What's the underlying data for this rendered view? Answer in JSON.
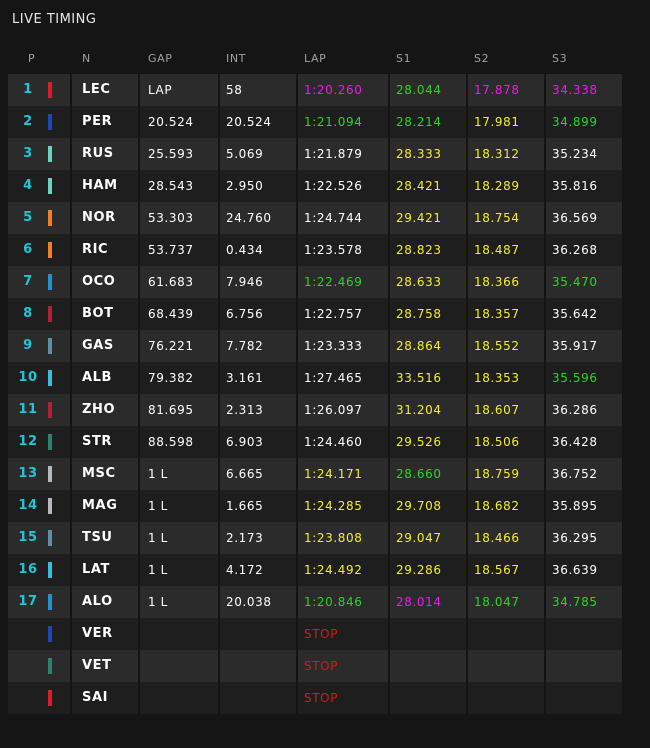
{
  "title": "LIVE TIMING",
  "headers": [
    "P",
    "N",
    "GAP",
    "INT",
    "LAP",
    "S1",
    "S2",
    "S3"
  ],
  "colors": {
    "white": "#ffffff",
    "yellow": "#f2ee33",
    "green": "#2fd12f",
    "purple": "#e81de3",
    "red": "#e01818",
    "position": "#1fc6d8"
  },
  "rows": [
    {
      "p": "1",
      "n": "LEC",
      "team": "#dc1f26",
      "gap": "LAP",
      "int": "58",
      "lap": "1:20.260",
      "lap_c": "purple",
      "s1": "28.044",
      "s1_c": "green",
      "s2": "17.878",
      "s2_c": "purple",
      "s3": "34.338",
      "s3_c": "purple"
    },
    {
      "p": "2",
      "n": "PER",
      "team": "#1c48b8",
      "gap": "20.524",
      "int": "20.524",
      "lap": "1:21.094",
      "lap_c": "green",
      "s1": "28.214",
      "s1_c": "green",
      "s2": "17.981",
      "s2_c": "yellow",
      "s3": "34.899",
      "s3_c": "green"
    },
    {
      "p": "3",
      "n": "RUS",
      "team": "#6cd3bf",
      "gap": "25.593",
      "int": "5.069",
      "lap": "1:21.879",
      "lap_c": "white",
      "s1": "28.333",
      "s1_c": "yellow",
      "s2": "18.312",
      "s2_c": "yellow",
      "s3": "35.234",
      "s3_c": "white"
    },
    {
      "p": "4",
      "n": "HAM",
      "team": "#6cd3bf",
      "gap": "28.543",
      "int": "2.950",
      "lap": "1:22.526",
      "lap_c": "white",
      "s1": "28.421",
      "s1_c": "yellow",
      "s2": "18.289",
      "s2_c": "yellow",
      "s3": "35.816",
      "s3_c": "white"
    },
    {
      "p": "5",
      "n": "NOR",
      "team": "#f58020",
      "gap": "53.303",
      "int": "24.760",
      "lap": "1:24.744",
      "lap_c": "white",
      "s1": "29.421",
      "s1_c": "yellow",
      "s2": "18.754",
      "s2_c": "yellow",
      "s3": "36.569",
      "s3_c": "white"
    },
    {
      "p": "6",
      "n": "RIC",
      "team": "#f58020",
      "gap": "53.737",
      "int": "0.434",
      "lap": "1:23.578",
      "lap_c": "white",
      "s1": "28.823",
      "s1_c": "yellow",
      "s2": "18.487",
      "s2_c": "yellow",
      "s3": "36.268",
      "s3_c": "white"
    },
    {
      "p": "7",
      "n": "OCO",
      "team": "#2293d1",
      "gap": "61.683",
      "int": "7.946",
      "lap": "1:22.469",
      "lap_c": "green",
      "s1": "28.633",
      "s1_c": "yellow",
      "s2": "18.366",
      "s2_c": "yellow",
      "s3": "35.470",
      "s3_c": "green"
    },
    {
      "p": "8",
      "n": "BOT",
      "team": "#b12039",
      "gap": "68.439",
      "int": "6.756",
      "lap": "1:22.757",
      "lap_c": "white",
      "s1": "28.758",
      "s1_c": "yellow",
      "s2": "18.357",
      "s2_c": "yellow",
      "s3": "35.642",
      "s3_c": "white"
    },
    {
      "p": "9",
      "n": "GAS",
      "team": "#5e8faa",
      "gap": "76.221",
      "int": "7.782",
      "lap": "1:23.333",
      "lap_c": "white",
      "s1": "28.864",
      "s1_c": "yellow",
      "s2": "18.552",
      "s2_c": "yellow",
      "s3": "35.917",
      "s3_c": "white"
    },
    {
      "p": "10",
      "n": "ALB",
      "team": "#37bedd",
      "gap": "79.382",
      "int": "3.161",
      "lap": "1:27.465",
      "lap_c": "white",
      "s1": "33.516",
      "s1_c": "yellow",
      "s2": "18.353",
      "s2_c": "yellow",
      "s3": "35.596",
      "s3_c": "green"
    },
    {
      "p": "11",
      "n": "ZHO",
      "team": "#b12039",
      "gap": "81.695",
      "int": "2.313",
      "lap": "1:26.097",
      "lap_c": "white",
      "s1": "31.204",
      "s1_c": "yellow",
      "s2": "18.607",
      "s2_c": "yellow",
      "s3": "36.286",
      "s3_c": "white"
    },
    {
      "p": "12",
      "n": "STR",
      "team": "#2d826d",
      "gap": "88.598",
      "int": "6.903",
      "lap": "1:24.460",
      "lap_c": "white",
      "s1": "29.526",
      "s1_c": "yellow",
      "s2": "18.506",
      "s2_c": "yellow",
      "s3": "36.428",
      "s3_c": "white"
    },
    {
      "p": "13",
      "n": "MSC",
      "team": "#b6babd",
      "gap": "1 L",
      "int": "6.665",
      "lap": "1:24.171",
      "lap_c": "yellow",
      "s1": "28.660",
      "s1_c": "green",
      "s2": "18.759",
      "s2_c": "yellow",
      "s3": "36.752",
      "s3_c": "white"
    },
    {
      "p": "14",
      "n": "MAG",
      "team": "#b6babd",
      "gap": "1 L",
      "int": "1.665",
      "lap": "1:24.285",
      "lap_c": "yellow",
      "s1": "29.708",
      "s1_c": "yellow",
      "s2": "18.682",
      "s2_c": "yellow",
      "s3": "35.895",
      "s3_c": "white"
    },
    {
      "p": "15",
      "n": "TSU",
      "team": "#5e8faa",
      "gap": "1 L",
      "int": "2.173",
      "lap": "1:23.808",
      "lap_c": "yellow",
      "s1": "29.047",
      "s1_c": "yellow",
      "s2": "18.466",
      "s2_c": "yellow",
      "s3": "36.295",
      "s3_c": "white"
    },
    {
      "p": "16",
      "n": "LAT",
      "team": "#37bedd",
      "gap": "1 L",
      "int": "4.172",
      "lap": "1:24.492",
      "lap_c": "yellow",
      "s1": "29.286",
      "s1_c": "yellow",
      "s2": "18.567",
      "s2_c": "yellow",
      "s3": "36.639",
      "s3_c": "white"
    },
    {
      "p": "17",
      "n": "ALO",
      "team": "#2293d1",
      "gap": "1 L",
      "int": "20.038",
      "lap": "1:20.846",
      "lap_c": "green",
      "s1": "28.014",
      "s1_c": "purple",
      "s2": "18.047",
      "s2_c": "green",
      "s3": "34.785",
      "s3_c": "green"
    },
    {
      "p": "",
      "n": "VER",
      "team": "#1c48b8",
      "gap": "",
      "int": "",
      "lap": "STOP",
      "lap_c": "red",
      "s1": "",
      "s1_c": "white",
      "s2": "",
      "s2_c": "white",
      "s3": "",
      "s3_c": "white"
    },
    {
      "p": "",
      "n": "VET",
      "team": "#2d826d",
      "gap": "",
      "int": "",
      "lap": "STOP",
      "lap_c": "red",
      "s1": "",
      "s1_c": "white",
      "s2": "",
      "s2_c": "white",
      "s3": "",
      "s3_c": "white"
    },
    {
      "p": "",
      "n": "SAI",
      "team": "#dc1f26",
      "gap": "",
      "int": "",
      "lap": "STOP",
      "lap_c": "red",
      "s1": "",
      "s1_c": "white",
      "s2": "",
      "s2_c": "white",
      "s3": "",
      "s3_c": "white"
    }
  ]
}
